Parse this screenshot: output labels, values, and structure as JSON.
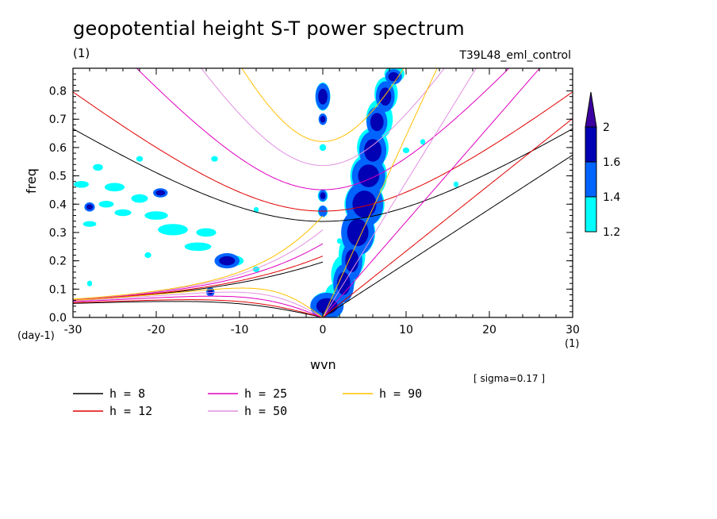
{
  "header": {
    "title": "geopotential height S-T power spectrum",
    "subtitle": "(1)",
    "run_name": "T39L48_eml_control"
  },
  "footer": {
    "sigma_note": "[ sigma=0.17 ]",
    "x_unit_left": "(day-1)",
    "x_unit_right": "(1)"
  },
  "chart_data": {
    "type": "heatmap",
    "title": "geopotential height S-T power spectrum",
    "xlabel": "wvn",
    "ylabel": "freq",
    "xlim": [
      -30,
      30
    ],
    "ylim": [
      0,
      0.88
    ],
    "x_ticks": [
      -30,
      -20,
      -10,
      0,
      10,
      20,
      30
    ],
    "y_ticks": [
      0.0,
      0.1,
      0.2,
      0.3,
      0.4,
      0.5,
      0.6,
      0.7,
      0.8
    ],
    "x_tick_labels": [
      "-30",
      "-20",
      "-10",
      "0",
      "10",
      "20",
      "30"
    ],
    "y_tick_labels": [
      "0.0",
      "0.1",
      "0.2",
      "0.3",
      "0.4",
      "0.5",
      "0.6",
      "0.7",
      "0.8"
    ],
    "colorbar": {
      "levels": [
        1.2,
        1.4,
        1.6,
        2
      ],
      "labels": [
        "1.2",
        "1.4",
        "1.6",
        "2"
      ],
      "colors": [
        "#00ffff",
        "#0064ff",
        "#0000b4",
        "#3c00a0"
      ]
    },
    "dispersion_curves": [
      {
        "label": "h =  8",
        "h": 8,
        "color": "#000000"
      },
      {
        "label": "h = 12",
        "h": 12,
        "color": "#e00000"
      },
      {
        "label": "h = 25",
        "h": 25,
        "color": "#e000c0"
      },
      {
        "label": "h = 50",
        "h": 50,
        "color": "#e090e0"
      },
      {
        "label": "h = 90",
        "h": 90,
        "color": "#ffc000"
      }
    ],
    "blobs": [
      {
        "x": 0,
        "y": 0.78,
        "rx": 0.7,
        "ry": 0.035,
        "level": 3
      },
      {
        "x": 0,
        "y": 0.7,
        "rx": 0.4,
        "ry": 0.015,
        "level": 3
      },
      {
        "x": 0,
        "y": 0.43,
        "rx": 0.4,
        "ry": 0.015,
        "level": 3
      },
      {
        "x": 0,
        "y": 0.375,
        "rx": 0.4,
        "ry": 0.015,
        "level": 2
      },
      {
        "x": 0.5,
        "y": 0.04,
        "rx": 1.6,
        "ry": 0.035,
        "level": 3
      },
      {
        "x": 2.5,
        "y": 0.12,
        "rx": 1.0,
        "ry": 0.05,
        "level": 3
      },
      {
        "x": 3.5,
        "y": 0.2,
        "rx": 1.0,
        "ry": 0.05,
        "level": 3
      },
      {
        "x": 4.2,
        "y": 0.3,
        "rx": 1.6,
        "ry": 0.06,
        "level": 3
      },
      {
        "x": 5.0,
        "y": 0.4,
        "rx": 1.8,
        "ry": 0.06,
        "level": 3
      },
      {
        "x": 5.5,
        "y": 0.5,
        "rx": 1.6,
        "ry": 0.05,
        "level": 3
      },
      {
        "x": 6.0,
        "y": 0.59,
        "rx": 1.3,
        "ry": 0.05,
        "level": 3
      },
      {
        "x": 6.5,
        "y": 0.69,
        "rx": 1.0,
        "ry": 0.04,
        "level": 3
      },
      {
        "x": 7.5,
        "y": 0.78,
        "rx": 0.9,
        "ry": 0.04,
        "level": 3
      },
      {
        "x": 8.5,
        "y": 0.85,
        "rx": 0.8,
        "ry": 0.02,
        "level": 3
      },
      {
        "x": -11.5,
        "y": 0.2,
        "rx": 1.2,
        "ry": 0.02,
        "level": 3
      },
      {
        "x": -19.5,
        "y": 0.44,
        "rx": 0.7,
        "ry": 0.012,
        "level": 3
      },
      {
        "x": -28.0,
        "y": 0.39,
        "rx": 0.5,
        "ry": 0.012,
        "level": 3
      },
      {
        "x": -13.5,
        "y": 0.09,
        "rx": 0.4,
        "ry": 0.012,
        "level": 3
      }
    ],
    "scatter_cells": [
      {
        "x": -29,
        "y": 0.47,
        "rx": 0.9,
        "ry": 0.012
      },
      {
        "x": -25,
        "y": 0.46,
        "rx": 1.2,
        "ry": 0.015
      },
      {
        "x": -22,
        "y": 0.42,
        "rx": 1.0,
        "ry": 0.015
      },
      {
        "x": -26,
        "y": 0.4,
        "rx": 0.9,
        "ry": 0.012
      },
      {
        "x": -24,
        "y": 0.37,
        "rx": 1.0,
        "ry": 0.012
      },
      {
        "x": -20,
        "y": 0.36,
        "rx": 1.4,
        "ry": 0.015
      },
      {
        "x": -18,
        "y": 0.31,
        "rx": 1.8,
        "ry": 0.02
      },
      {
        "x": -14,
        "y": 0.3,
        "rx": 1.2,
        "ry": 0.015
      },
      {
        "x": -28,
        "y": 0.33,
        "rx": 0.8,
        "ry": 0.01
      },
      {
        "x": -15,
        "y": 0.25,
        "rx": 1.6,
        "ry": 0.015
      },
      {
        "x": -11,
        "y": 0.2,
        "rx": 1.5,
        "ry": 0.02
      },
      {
        "x": -22,
        "y": 0.56,
        "rx": 0.4,
        "ry": 0.01
      },
      {
        "x": -27,
        "y": 0.53,
        "rx": 0.6,
        "ry": 0.012
      },
      {
        "x": -13,
        "y": 0.56,
        "rx": 0.4,
        "ry": 0.01
      },
      {
        "x": -8,
        "y": 0.17,
        "rx": 0.4,
        "ry": 0.01
      },
      {
        "x": -28,
        "y": 0.12,
        "rx": 0.3,
        "ry": 0.01
      },
      {
        "x": -21,
        "y": 0.22,
        "rx": 0.4,
        "ry": 0.01
      },
      {
        "x": -8,
        "y": 0.38,
        "rx": 0.3,
        "ry": 0.01
      },
      {
        "x": 0,
        "y": 0.6,
        "rx": 0.4,
        "ry": 0.012
      },
      {
        "x": 0,
        "y": 0.78,
        "rx": 0.9,
        "ry": 0.05
      },
      {
        "x": 0,
        "y": 0.7,
        "rx": 0.5,
        "ry": 0.02
      },
      {
        "x": 0,
        "y": 0.43,
        "rx": 0.6,
        "ry": 0.022
      },
      {
        "x": 0,
        "y": 0.375,
        "rx": 0.6,
        "ry": 0.02
      },
      {
        "x": 0.5,
        "y": 0.04,
        "rx": 2.0,
        "ry": 0.05
      },
      {
        "x": 1.5,
        "y": 0.08,
        "rx": 1.2,
        "ry": 0.04
      },
      {
        "x": 2.5,
        "y": 0.15,
        "rx": 1.5,
        "ry": 0.07
      },
      {
        "x": 3.5,
        "y": 0.22,
        "rx": 1.6,
        "ry": 0.08
      },
      {
        "x": 4.3,
        "y": 0.3,
        "rx": 2.0,
        "ry": 0.08
      },
      {
        "x": 5.0,
        "y": 0.4,
        "rx": 2.4,
        "ry": 0.08
      },
      {
        "x": 5.5,
        "y": 0.5,
        "rx": 2.2,
        "ry": 0.08
      },
      {
        "x": 6.0,
        "y": 0.6,
        "rx": 1.9,
        "ry": 0.07
      },
      {
        "x": 6.8,
        "y": 0.7,
        "rx": 1.6,
        "ry": 0.07
      },
      {
        "x": 7.6,
        "y": 0.79,
        "rx": 1.4,
        "ry": 0.06
      },
      {
        "x": 8.6,
        "y": 0.86,
        "rx": 1.2,
        "ry": 0.03
      },
      {
        "x": 10,
        "y": 0.59,
        "rx": 0.4,
        "ry": 0.01
      },
      {
        "x": 12,
        "y": 0.62,
        "rx": 0.3,
        "ry": 0.01
      },
      {
        "x": 16,
        "y": 0.47,
        "rx": 0.3,
        "ry": 0.01
      },
      {
        "x": 2,
        "y": 0.27,
        "rx": 0.3,
        "ry": 0.01
      }
    ]
  },
  "legend": {
    "items": [
      {
        "label": "h =  8",
        "color": "#000000"
      },
      {
        "label": "h = 12",
        "color": "#e00000"
      },
      {
        "label": "h = 25",
        "color": "#e000c0"
      },
      {
        "label": "h = 50",
        "color": "#e090e0"
      },
      {
        "label": "h = 90",
        "color": "#ffc000"
      }
    ]
  }
}
